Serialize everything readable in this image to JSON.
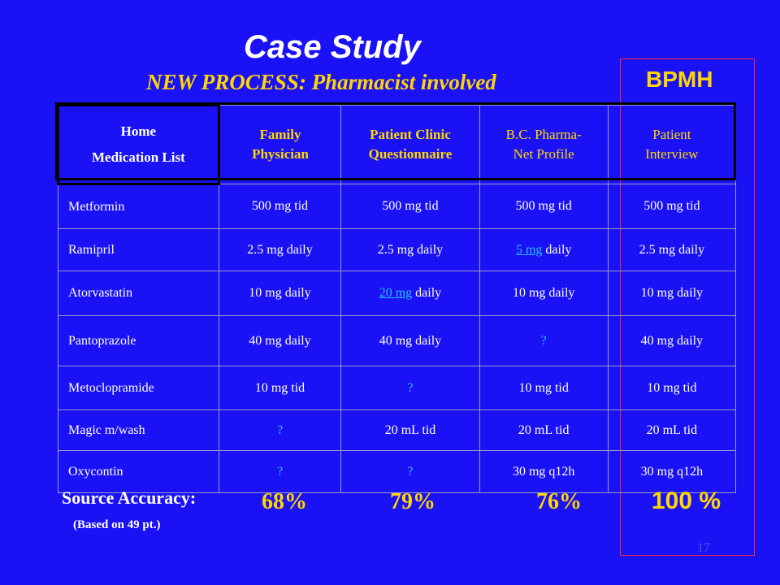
{
  "title": "Case Study",
  "subtitle": "NEW PROCESS:  Pharmacist involved",
  "bpmh_label": "BPMH",
  "table": {
    "headers": [
      {
        "line1": "Home",
        "line2": "Medication List"
      },
      {
        "text": "Family Physician"
      },
      {
        "text": "Patient Clinic Questionnaire"
      },
      {
        "text": "B.C. Pharma-Net Profile"
      },
      {
        "text": "Patient Interview"
      }
    ],
    "rows": [
      {
        "drug": "Metformin",
        "cells": [
          {
            "text": "500 mg tid"
          },
          {
            "text": "500 mg tid"
          },
          {
            "text": "500 mg tid"
          },
          {
            "text": "500 mg tid"
          }
        ]
      },
      {
        "drug": "Ramipril",
        "cells": [
          {
            "text": "2.5 mg daily"
          },
          {
            "text": "2.5 mg daily"
          },
          {
            "link": "5 mg",
            "rest": " daily"
          },
          {
            "text": "2.5 mg daily"
          }
        ]
      },
      {
        "drug": "Atorvastatin",
        "cells": [
          {
            "text": "10 mg daily"
          },
          {
            "link": "20 mg",
            "rest": " daily"
          },
          {
            "text": "10 mg daily"
          },
          {
            "text": "10 mg daily"
          }
        ]
      },
      {
        "drug": "Pantoprazole",
        "cells": [
          {
            "text": "40 mg daily"
          },
          {
            "text": "40 mg daily"
          },
          {
            "unknown": "?"
          },
          {
            "text": "40 mg daily"
          }
        ]
      },
      {
        "drug": "Metoclopramide",
        "cells": [
          {
            "text": "10 mg tid"
          },
          {
            "unknown": "?"
          },
          {
            "text": "10 mg tid"
          },
          {
            "text": "10 mg tid"
          }
        ]
      },
      {
        "drug": "Magic m/wash",
        "cells": [
          {
            "unknown": "?"
          },
          {
            "text": "20 mL tid"
          },
          {
            "text": "20 mL tid"
          },
          {
            "text": "20 mL tid"
          }
        ]
      },
      {
        "drug": "Oxycontin",
        "cells": [
          {
            "unknown": "?"
          },
          {
            "unknown": "?"
          },
          {
            "text": "30 mg q12h"
          },
          {
            "text": "30 mg q12h"
          }
        ]
      }
    ]
  },
  "source_accuracy": {
    "label": "Source Accuracy:",
    "note": "(Based on 49 pt.)",
    "values": [
      "68%",
      "79%",
      "76%",
      "100 %"
    ]
  },
  "page_number": "17",
  "colors": {
    "background": "#1a12f5",
    "accent_yellow": "#ffd600",
    "link_blue": "#27c0ff",
    "box_red": "#ff2a2a"
  }
}
